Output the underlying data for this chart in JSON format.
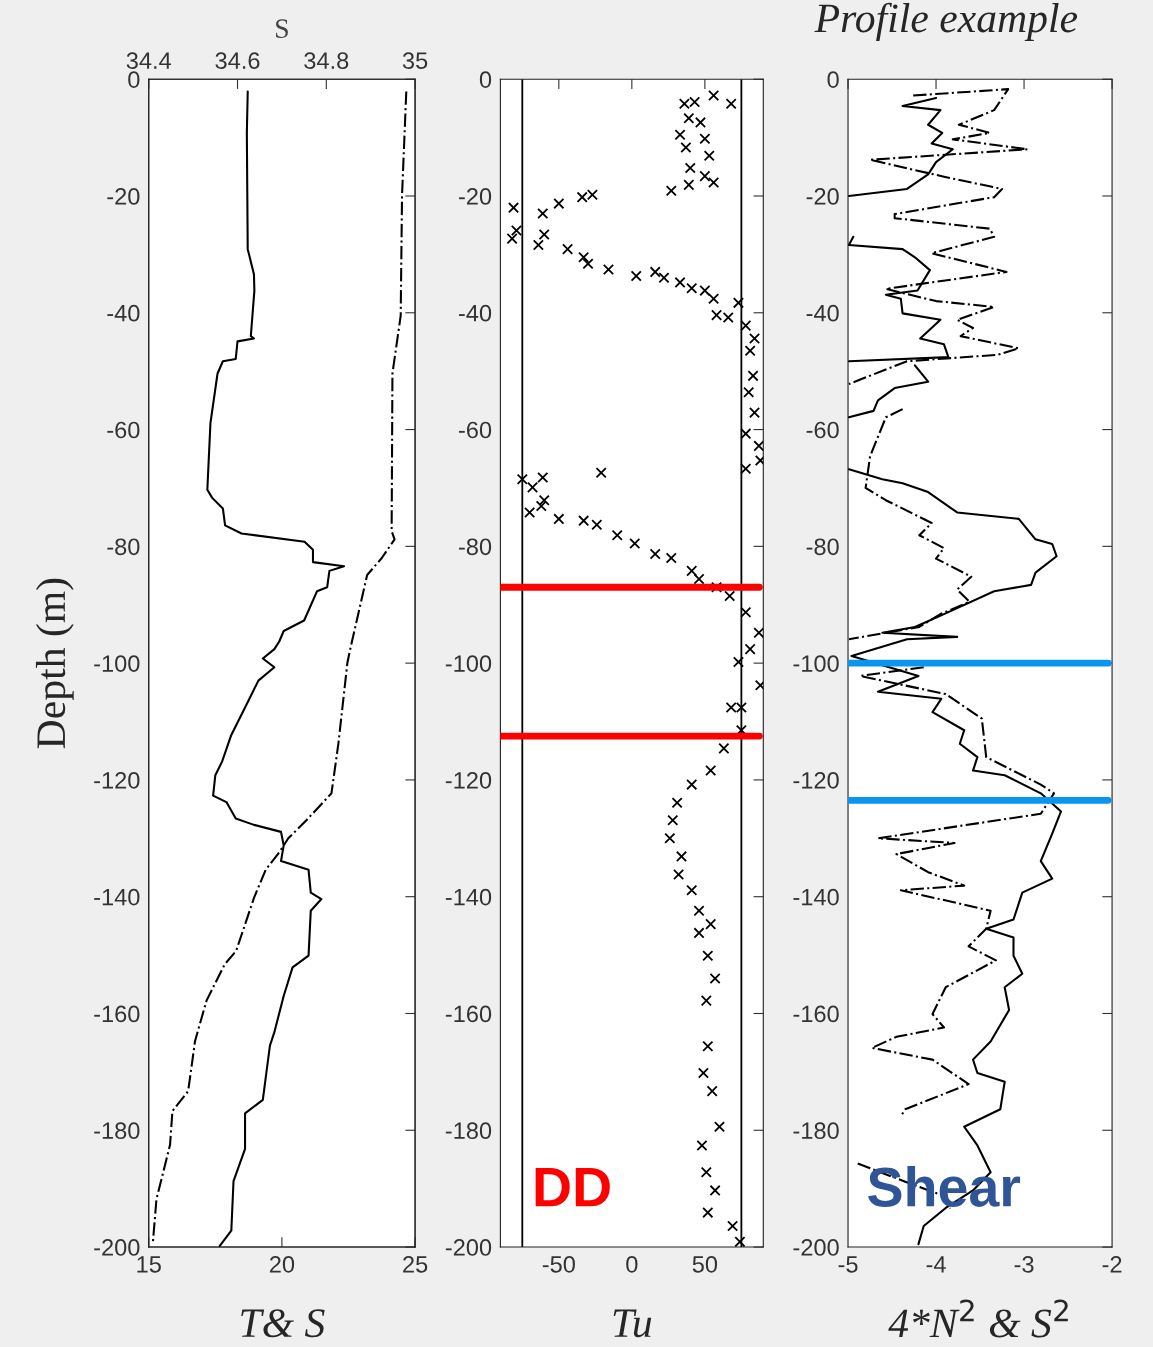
{
  "chart_data": [
    {
      "type": "line",
      "xlabel": "T& S",
      "ylabel": "Depth (m)",
      "x2label": "S",
      "xlim": [
        15,
        25
      ],
      "xticks": [
        15,
        20,
        25
      ],
      "x2lim": [
        34.4,
        35
      ],
      "x2ticks": [
        34.4,
        34.6,
        34.8,
        35
      ],
      "ylim": [
        -200,
        0
      ],
      "yticks": [
        0,
        -20,
        -40,
        -60,
        -80,
        -100,
        -120,
        -140,
        -160,
        -180,
        -200
      ],
      "series": [
        {
          "color": "#000000",
          "axis": "x2",
          "line_style": "solid",
          "x": [
            34.623,
            34.621,
            34.623,
            34.637,
            34.638,
            34.63,
            34.637,
            34.6,
            34.596,
            34.567,
            34.555,
            34.539,
            34.532,
            34.543,
            34.567,
            34.572,
            34.609,
            34.751,
            34.77,
            34.77,
            34.84,
            34.807,
            34.802,
            34.779,
            34.75,
            34.704,
            34.694,
            34.683,
            34.657,
            34.683,
            34.647,
            34.617,
            34.586,
            34.565,
            34.55,
            34.545,
            34.575,
            34.596,
            34.637,
            34.698,
            34.704,
            34.698,
            34.76,
            34.765,
            34.789,
            34.765,
            34.76,
            34.724,
            34.704,
            34.683,
            34.673,
            34.657,
            34.617,
            34.617,
            34.591,
            34.586,
            34.56
          ],
          "values": [
            -2.1,
            -9.2,
            -29.1,
            -33.4,
            -36.2,
            -44.0,
            -44.4,
            -44.9,
            -47.9,
            -48.3,
            -50.4,
            -58.9,
            -70.3,
            -71.7,
            -73.5,
            -76.4,
            -77.8,
            -79.2,
            -80.6,
            -82.7,
            -83.4,
            -84.2,
            -87.0,
            -87.7,
            -92.7,
            -94.5,
            -96.3,
            -97.6,
            -99.2,
            -100.7,
            -103.0,
            -107.6,
            -112.3,
            -116.9,
            -119.2,
            -122.7,
            -123.8,
            -126.6,
            -127.7,
            -128.9,
            -131.2,
            -133.9,
            -135.4,
            -139.3,
            -140.4,
            -142.4,
            -150.1,
            -152.1,
            -157.0,
            -163.2,
            -165.5,
            -174.8,
            -177.1,
            -183.2,
            -188.7,
            -197.2,
            -199.8
          ]
        },
        {
          "color": "#000000",
          "line_style": "dashdot",
          "x": [
            24.67,
            24.51,
            24.46,
            24.15,
            24.12,
            24.23,
            23.75,
            23.2,
            22.58,
            22.46,
            22.12,
            21.86,
            20.92,
            20.24,
            19.9,
            19.39,
            18.96,
            18.28,
            17.85,
            17.17,
            16.74,
            16.48,
            15.89,
            15.8,
            15.29,
            15.15
          ],
          "values": [
            -2.1,
            -19.9,
            -40.5,
            -50.4,
            -77.4,
            -78.8,
            -82.0,
            -84.9,
            -97.3,
            -99.9,
            -113.8,
            -122.3,
            -126.9,
            -130.0,
            -132.4,
            -135.4,
            -140.1,
            -149.3,
            -151.6,
            -157.8,
            -164.7,
            -173.3,
            -176.7,
            -182.5,
            -191.8,
            -199.5
          ]
        }
      ]
    },
    {
      "type": "scatter",
      "xlabel": "Tu",
      "marker": "cross",
      "annotations": [
        "DD"
      ],
      "xlim": [
        -90,
        90
      ],
      "xticks": [
        -50,
        0,
        50
      ],
      "ylim": [
        -200,
        0
      ],
      "yticks": [
        0,
        -20,
        -40,
        -60,
        -80,
        -100,
        -120,
        -140,
        -160,
        -180,
        -200
      ],
      "ref_lines": [
        {
          "axis": "x",
          "value": -75,
          "color": "#000000"
        },
        {
          "axis": "x",
          "value": 75,
          "color": "#000000"
        },
        {
          "axis": "y",
          "value": -87,
          "color": "#ff0000"
        },
        {
          "axis": "y",
          "value": -112.5,
          "color": "#ff0000"
        }
      ],
      "series": [
        {
          "color": "#000000",
          "x": [
            56,
            68,
            36,
            43,
            39,
            47,
            33,
            50,
            37,
            53,
            40,
            50,
            56,
            27,
            39,
            -27,
            -34,
            -50,
            -61,
            -81,
            -79,
            -82,
            -60,
            -64,
            -44,
            -33,
            -30,
            -16,
            3,
            16,
            22,
            33,
            41,
            50,
            56,
            58,
            66,
            73,
            78,
            84,
            81,
            83,
            80,
            84,
            78,
            87,
            88,
            78,
            -21,
            -75,
            -61,
            -68,
            -60,
            -70,
            -62,
            -50,
            -33,
            -24,
            -10,
            2,
            16,
            27,
            41,
            46,
            58,
            67,
            78,
            87,
            81,
            73,
            88,
            75,
            68,
            75,
            63,
            54,
            41,
            31,
            28,
            26,
            34,
            32,
            41,
            46,
            54,
            46,
            52,
            57,
            51,
            52,
            49,
            55,
            60,
            48,
            51,
            57,
            52,
            69,
            74
          ],
          "values": [
            -2.8,
            -4.2,
            -4.2,
            -3.9,
            -6.7,
            -7.4,
            -9.5,
            -10.2,
            -11.7,
            -13.1,
            -15.2,
            -16.6,
            -17.7,
            -19.1,
            -18.1,
            -19.8,
            -20.2,
            -21.3,
            -23.0,
            -22.0,
            -25.9,
            -27.3,
            -26.6,
            -28.4,
            -29.1,
            -30.5,
            -31.6,
            -32.6,
            -33.7,
            -33.0,
            -34.0,
            -34.8,
            -35.8,
            -36.2,
            -37.6,
            -40.4,
            -40.8,
            -38.3,
            -42.2,
            -44.4,
            -46.5,
            -50.8,
            -53.6,
            -57.1,
            -60.7,
            -62.8,
            -65.3,
            -66.7,
            -67.4,
            -68.5,
            -68.2,
            -69.9,
            -72.1,
            -74.2,
            -73.1,
            -75.3,
            -75.6,
            -76.3,
            -78.1,
            -79.5,
            -81.3,
            -82.0,
            -84.2,
            -85.6,
            -87.0,
            -88.5,
            -91.3,
            -94.8,
            -97.6,
            -99.8,
            -103.8,
            -107.6,
            -107.6,
            -111.5,
            -114.6,
            -118.4,
            -120.8,
            -123.9,
            -126.9,
            -130.0,
            -133.1,
            -136.2,
            -138.9,
            -142.4,
            -144.7,
            -146.2,
            -150.1,
            -154.0,
            -157.8,
            -165.6,
            -170.2,
            -173.3,
            -179.4,
            -182.6,
            -187.2,
            -190.3,
            -194.1,
            -196.4,
            -199.1
          ]
        }
      ]
    },
    {
      "type": "line",
      "title": "Profile example",
      "xlabel": "4*N$^{2}$ & S$^{2}$",
      "annotations": [
        "Shear"
      ],
      "xlim": [
        -5,
        -2
      ],
      "xticks": [
        -5,
        -4,
        -3,
        -2
      ],
      "ylim": [
        -200,
        0
      ],
      "yticks": [
        0,
        -20,
        -40,
        -60,
        -80,
        -100,
        -120,
        -140,
        -160,
        -180,
        -200
      ],
      "ref_lines": [
        {
          "axis": "y",
          "value": -100,
          "color": "#0a96f0"
        },
        {
          "axis": "y",
          "value": -123.5,
          "color": "#0a96f0"
        }
      ],
      "series": [
        {
          "color": "#000000",
          "line_style": "solid",
          "x": [
            -4.0,
            -4.38,
            -3.95,
            -4.09,
            -3.93,
            -4.05,
            -3.81,
            -4.0,
            -4.09,
            -4.33,
            -4.99,
            null,
            -4.94,
            -4.99,
            -4.38,
            -4.24,
            -4.07,
            -4.21,
            -4.57,
            -4.4,
            -4.38,
            -3.95,
            -4.18,
            -3.91,
            -3.86,
            -4.99,
            null,
            -4.24,
            -4.09,
            -4.47,
            -4.66,
            -4.71,
            -4.99,
            null,
            -4.99,
            -4.61,
            -4.38,
            -4.09,
            -3.76,
            -3.06,
            -2.87,
            -2.68,
            -2.63,
            -2.87,
            -2.92,
            -3.34,
            -3.91,
            -4.24,
            -4.61,
            -3.76,
            -4.33,
            -4.96,
            -4.2,
            -4.66,
            -3.94,
            -4.04,
            -3.68,
            -3.73,
            -3.53,
            -3.58,
            -3.22,
            -2.81,
            -2.58,
            -2.68,
            -2.81,
            -2.68,
            -3.02,
            -3.12,
            -3.43,
            -3.12,
            -3.12,
            -3.02,
            -3.22,
            -3.17,
            -3.38,
            -3.58,
            -3.53,
            -3.22,
            -3.27,
            -3.68,
            -3.53,
            -3.38,
            -3.58,
            -3.89,
            -4.14,
            -4.2
          ],
          "values": [
            -3.2,
            -4.6,
            -5.3,
            -7.8,
            -9.2,
            -11.0,
            -12.0,
            -14.2,
            -16.3,
            -18.8,
            -20.0,
            null,
            -27.0,
            -28.4,
            -29.1,
            -30.5,
            -32.7,
            -36.2,
            -36.9,
            -37.6,
            -40.1,
            -41.2,
            -44.4,
            -45.4,
            -47.6,
            -48.3,
            null,
            -49.0,
            -51.8,
            -52.9,
            -55.0,
            -56.8,
            -57.9,
            null,
            -66.8,
            -68.5,
            -69.2,
            -70.7,
            -74.2,
            -75.3,
            -78.8,
            -79.6,
            -81.7,
            -84.5,
            -86.6,
            -87.7,
            -91.6,
            -93.8,
            -94.8,
            -95.5,
            -95.9,
            -98.8,
            -102.2,
            -104.9,
            -106.1,
            -108.4,
            -111.5,
            -113.8,
            -116.1,
            -118.4,
            -119.2,
            -122.3,
            -125.4,
            -129.2,
            -133.9,
            -136.9,
            -139.3,
            -143.9,
            -145.5,
            -147.0,
            -150.1,
            -153.2,
            -155.5,
            -159.4,
            -164.8,
            -167.9,
            -170.2,
            -171.7,
            -176.4,
            -179.4,
            -182.6,
            -187.2,
            -190.3,
            -193.3,
            -196.4,
            -199.5
          ]
        },
        {
          "color": "#000000",
          "line_style": "dashdot",
          "x": [
            -4.26,
            -3.18,
            -3.34,
            -3.74,
            -3.39,
            -3.81,
            -2.96,
            -4.75,
            -4.43,
            -3.91,
            -3.25,
            -3.34,
            -4.47,
            -4.47,
            -3.39,
            -3.34,
            -4.05,
            -3.2,
            -4.57,
            -4.0,
            -3.34,
            -3.76,
            -3.58,
            -3.72,
            -3.06,
            -3.3,
            -4.33,
            -4.99,
            null,
            -4.38,
            -4.57,
            -4.75,
            -4.8,
            -4.57,
            -4.05,
            -4.19,
            -3.91,
            -4.0,
            -3.6,
            -3.76,
            -3.62,
            -3.95,
            -4.19,
            -4.99,
            null,
            -4.14,
            -4.86,
            -3.89,
            -3.48,
            -3.43,
            -2.81,
            -2.66,
            -2.81,
            -4.66,
            -3.79,
            -4.45,
            -4.09,
            -3.68,
            -4.4,
            -3.38,
            -3.43,
            -3.63,
            -3.32,
            -3.89,
            -4.04,
            -3.91,
            -4.45,
            -4.73,
            -4.04,
            -3.63,
            -4.35,
            -4.4,
            null,
            -4.89,
            -4.35,
            -3.94,
            -3.84
          ],
          "values": [
            -2.8,
            -1.7,
            -5.3,
            -7.8,
            -9.2,
            -10.3,
            -12.0,
            -13.8,
            -14.9,
            -16.7,
            -18.8,
            -20.2,
            -23.1,
            -23.8,
            -25.6,
            -27.0,
            -29.8,
            -33.0,
            -35.9,
            -38.0,
            -39.0,
            -41.2,
            -42.6,
            -44.0,
            -46.1,
            -47.2,
            -48.3,
            -52.2,
            null,
            -56.5,
            -57.9,
            -64.6,
            -70.0,
            -72.1,
            -76.0,
            -78.1,
            -80.3,
            -82.1,
            -85.2,
            -87.4,
            -89.5,
            -91.6,
            -93.8,
            -95.9,
            null,
            -100.7,
            -102.2,
            -105.3,
            -109.5,
            -116.1,
            -120.8,
            -122.3,
            -125.8,
            -130.0,
            -130.8,
            -132.7,
            -135.8,
            -138.1,
            -138.9,
            -142.4,
            -145.5,
            -148.5,
            -150.9,
            -155.5,
            -160.1,
            -162.4,
            -164.0,
            -165.9,
            -167.9,
            -172.1,
            -176.4,
            -177.6,
            null,
            -185.7,
            -188.8,
            -191.1,
            -193.4
          ]
        }
      ]
    }
  ]
}
